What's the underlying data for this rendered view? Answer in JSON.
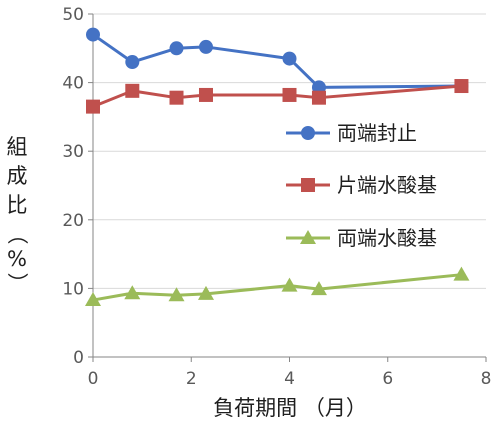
{
  "chart_data": {
    "type": "scatter",
    "xlabel": "負荷期間 （月）",
    "ylabel_chars": [
      "組",
      "成",
      "比",
      "（",
      "%",
      "）"
    ],
    "xlim": [
      0,
      8
    ],
    "ylim": [
      0,
      50
    ],
    "xticks": [
      "0",
      "2",
      "4",
      "6",
      "8"
    ],
    "yticks": [
      "0",
      "10",
      "20",
      "30",
      "40",
      "50"
    ],
    "grid": "horizontal",
    "legend_position": "right",
    "series": [
      {
        "name": "両端封止",
        "color": "#4472c4",
        "marker": "circle",
        "points": [
          [
            0,
            47
          ],
          [
            0.8,
            43
          ],
          [
            1.7,
            45
          ],
          [
            2.3,
            45.2
          ],
          [
            4,
            43.5
          ],
          [
            4.6,
            39.3
          ],
          [
            7.5,
            39.5
          ]
        ]
      },
      {
        "name": "片端水酸基",
        "color": "#c0504d",
        "marker": "square",
        "points": [
          [
            0,
            36.5
          ],
          [
            0.8,
            38.8
          ],
          [
            1.7,
            37.8
          ],
          [
            2.3,
            38.2
          ],
          [
            4,
            38.2
          ],
          [
            4.6,
            37.8
          ],
          [
            7.5,
            39.5
          ]
        ]
      },
      {
        "name": "両端水酸基",
        "color": "#9bbb59",
        "marker": "triangle",
        "points": [
          [
            0,
            8.3
          ],
          [
            0.8,
            9.3
          ],
          [
            1.7,
            9.0
          ],
          [
            2.3,
            9.2
          ],
          [
            4,
            10.4
          ],
          [
            4.6,
            9.9
          ],
          [
            7.5,
            12
          ]
        ]
      }
    ]
  }
}
